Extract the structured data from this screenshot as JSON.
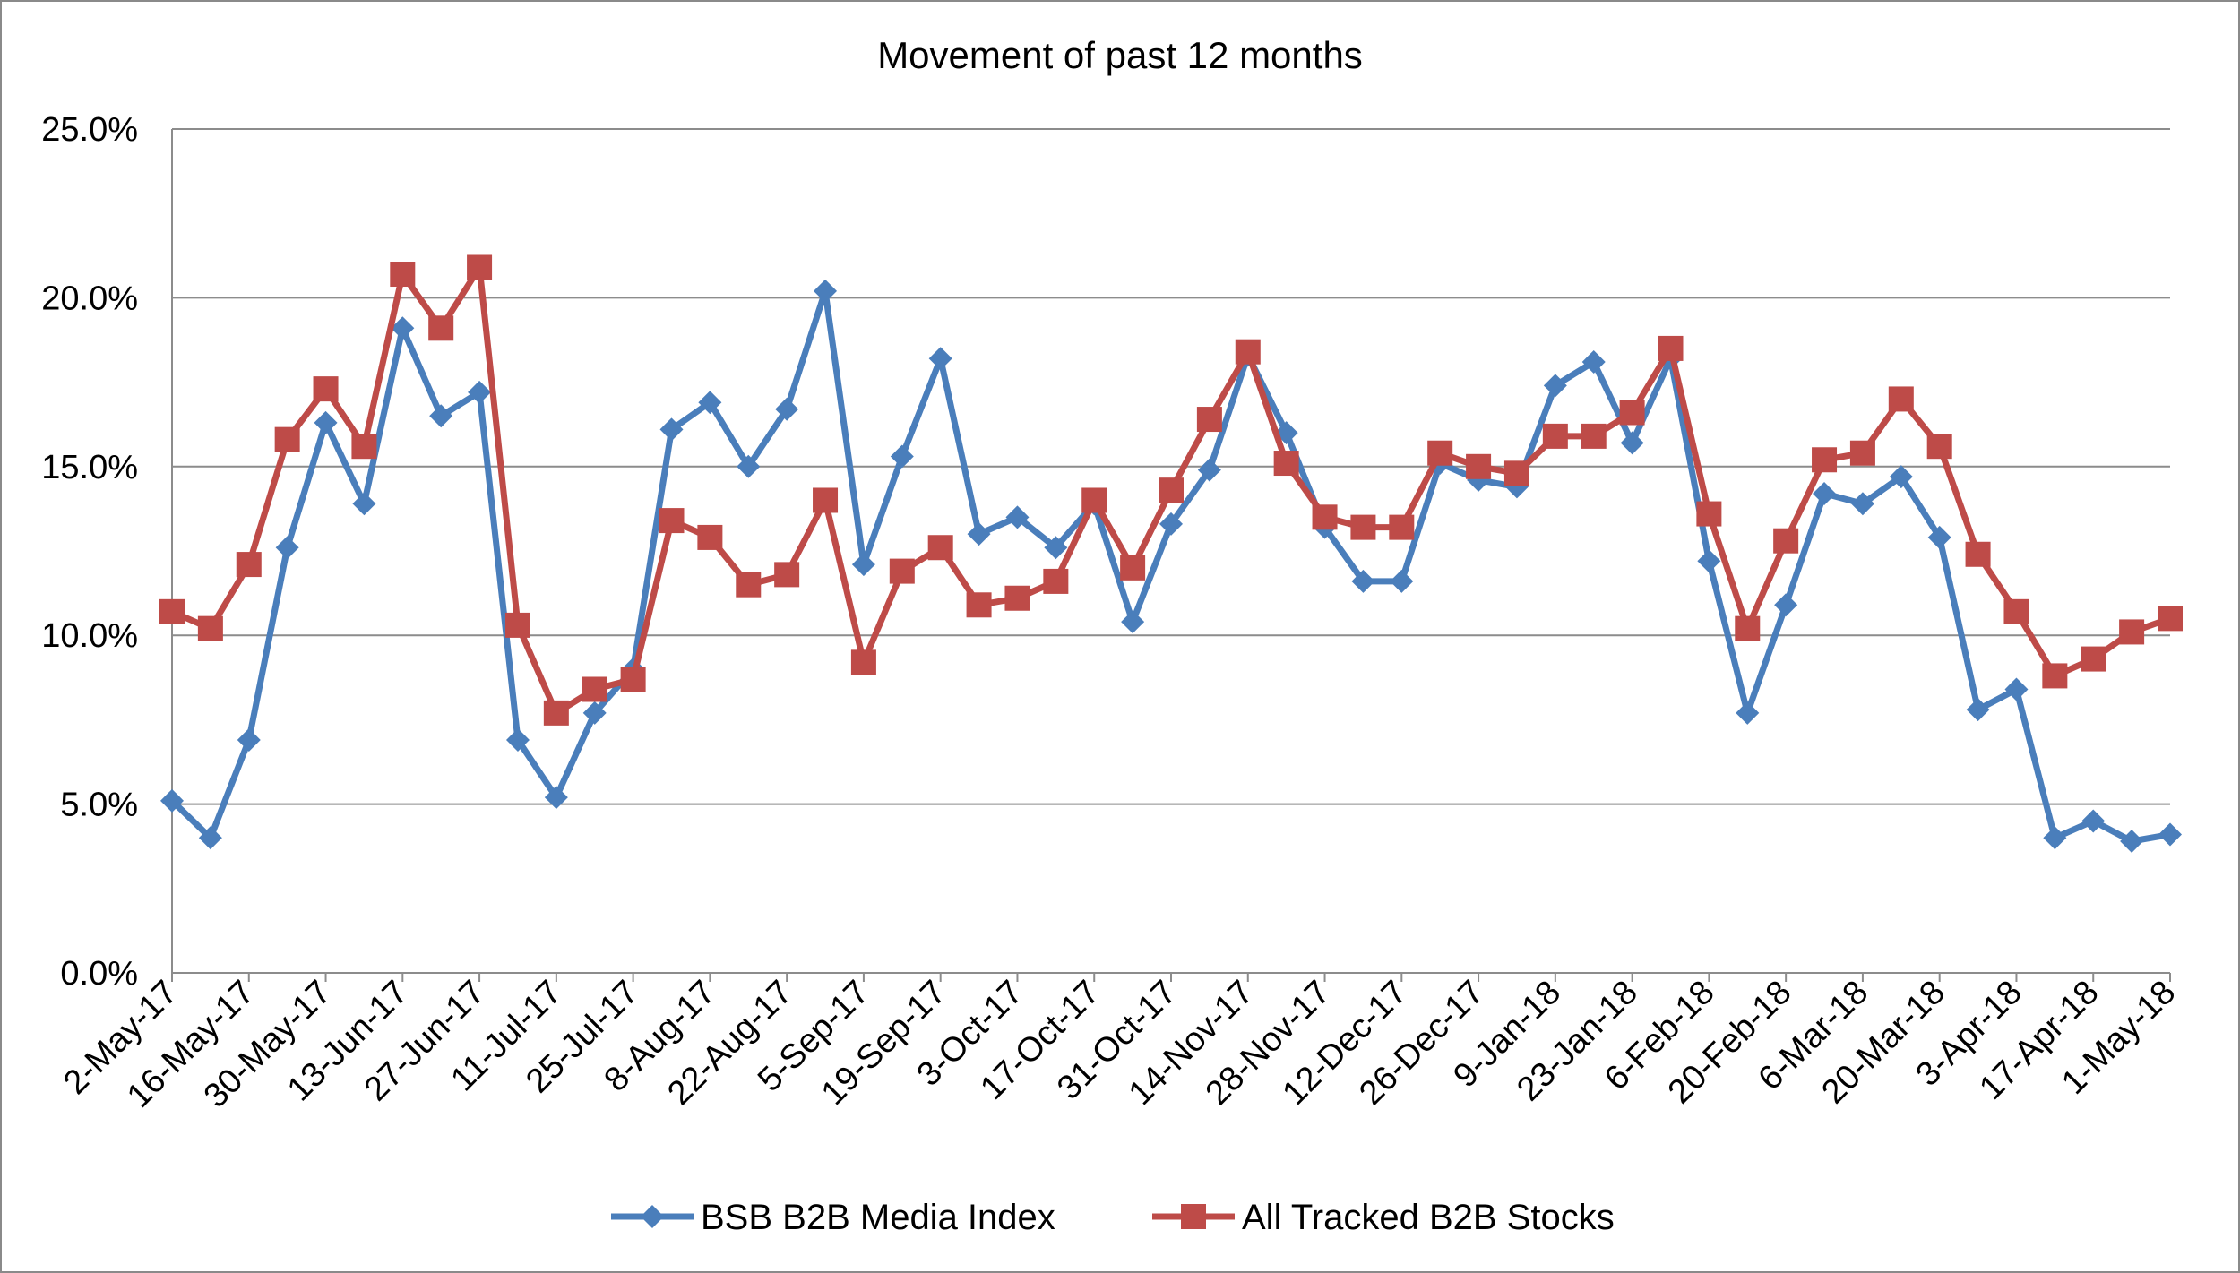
{
  "chart_data": {
    "type": "line",
    "title": "Movement of past 12 months",
    "xlabel": "",
    "ylabel": "",
    "ylim": [
      0,
      25
    ],
    "yticks": [
      0,
      5,
      10,
      15,
      20,
      25
    ],
    "ytick_labels": [
      "0.0%",
      "5.0%",
      "10.0%",
      "15.0%",
      "20.0%",
      "25.0%"
    ],
    "grid": "horizontal",
    "legend_position": "bottom",
    "x": [
      "2-May-17",
      "9-May-17",
      "16-May-17",
      "23-May-17",
      "30-May-17",
      "6-Jun-17",
      "13-Jun-17",
      "20-Jun-17",
      "27-Jun-17",
      "4-Jul-17",
      "11-Jul-17",
      "18-Jul-17",
      "25-Jul-17",
      "1-Aug-17",
      "8-Aug-17",
      "15-Aug-17",
      "22-Aug-17",
      "29-Aug-17",
      "5-Sep-17",
      "12-Sep-17",
      "19-Sep-17",
      "26-Sep-17",
      "3-Oct-17",
      "10-Oct-17",
      "17-Oct-17",
      "24-Oct-17",
      "31-Oct-17",
      "7-Nov-17",
      "14-Nov-17",
      "21-Nov-17",
      "28-Nov-17",
      "5-Dec-17",
      "12-Dec-17",
      "19-Dec-17",
      "26-Dec-17",
      "2-Jan-18",
      "9-Jan-18",
      "16-Jan-18",
      "23-Jan-18",
      "30-Jan-18",
      "6-Feb-18",
      "13-Feb-18",
      "20-Feb-18",
      "27-Feb-18",
      "6-Mar-18",
      "13-Mar-18",
      "20-Mar-18",
      "27-Mar-18",
      "3-Apr-18",
      "10-Apr-18",
      "17-Apr-18",
      "24-Apr-18",
      "1-May-18"
    ],
    "xtick_labels": [
      "2-May-17",
      "16-May-17",
      "30-May-17",
      "13-Jun-17",
      "27-Jun-17",
      "11-Jul-17",
      "25-Jul-17",
      "8-Aug-17",
      "22-Aug-17",
      "5-Sep-17",
      "19-Sep-17",
      "3-Oct-17",
      "17-Oct-17",
      "31-Oct-17",
      "14-Nov-17",
      "28-Nov-17",
      "12-Dec-17",
      "26-Dec-17",
      "9-Jan-18",
      "23-Jan-18",
      "6-Feb-18",
      "20-Feb-18",
      "6-Mar-18",
      "20-Mar-18",
      "3-Apr-18",
      "17-Apr-18",
      "1-May-18"
    ],
    "series": [
      {
        "name": "BSB B2B Media Index",
        "color": "#4a7ebb",
        "marker": "diamond",
        "values": [
          5.1,
          4.0,
          6.9,
          12.6,
          16.3,
          13.9,
          19.1,
          16.5,
          17.2,
          6.9,
          5.2,
          7.7,
          9.0,
          16.1,
          16.9,
          15.0,
          16.7,
          20.2,
          12.1,
          15.3,
          18.2,
          13.0,
          13.5,
          12.6,
          13.9,
          10.4,
          13.3,
          14.9,
          18.3,
          16.0,
          13.2,
          11.6,
          11.6,
          15.1,
          14.6,
          14.4,
          17.4,
          18.1,
          15.7,
          18.2,
          12.2,
          7.7,
          10.9,
          14.2,
          13.9,
          14.7,
          12.9,
          7.8,
          8.4,
          4.0,
          4.5,
          3.9,
          4.1
        ]
      },
      {
        "name": "All Tracked B2B Stocks",
        "color": "#be4b48",
        "marker": "square",
        "values": [
          10.7,
          10.2,
          12.1,
          15.8,
          17.3,
          15.6,
          20.7,
          19.1,
          20.9,
          10.3,
          7.7,
          8.4,
          8.7,
          13.4,
          12.9,
          11.5,
          11.8,
          14.0,
          9.2,
          11.9,
          12.6,
          10.9,
          11.1,
          11.6,
          14.0,
          12.0,
          14.3,
          16.4,
          18.4,
          15.1,
          13.5,
          13.2,
          13.2,
          15.4,
          15.0,
          14.8,
          15.9,
          15.9,
          16.6,
          18.5,
          13.6,
          10.2,
          12.8,
          15.2,
          15.4,
          17.0,
          15.6,
          12.4,
          10.7,
          8.8,
          9.3,
          10.1,
          10.5
        ]
      }
    ]
  }
}
